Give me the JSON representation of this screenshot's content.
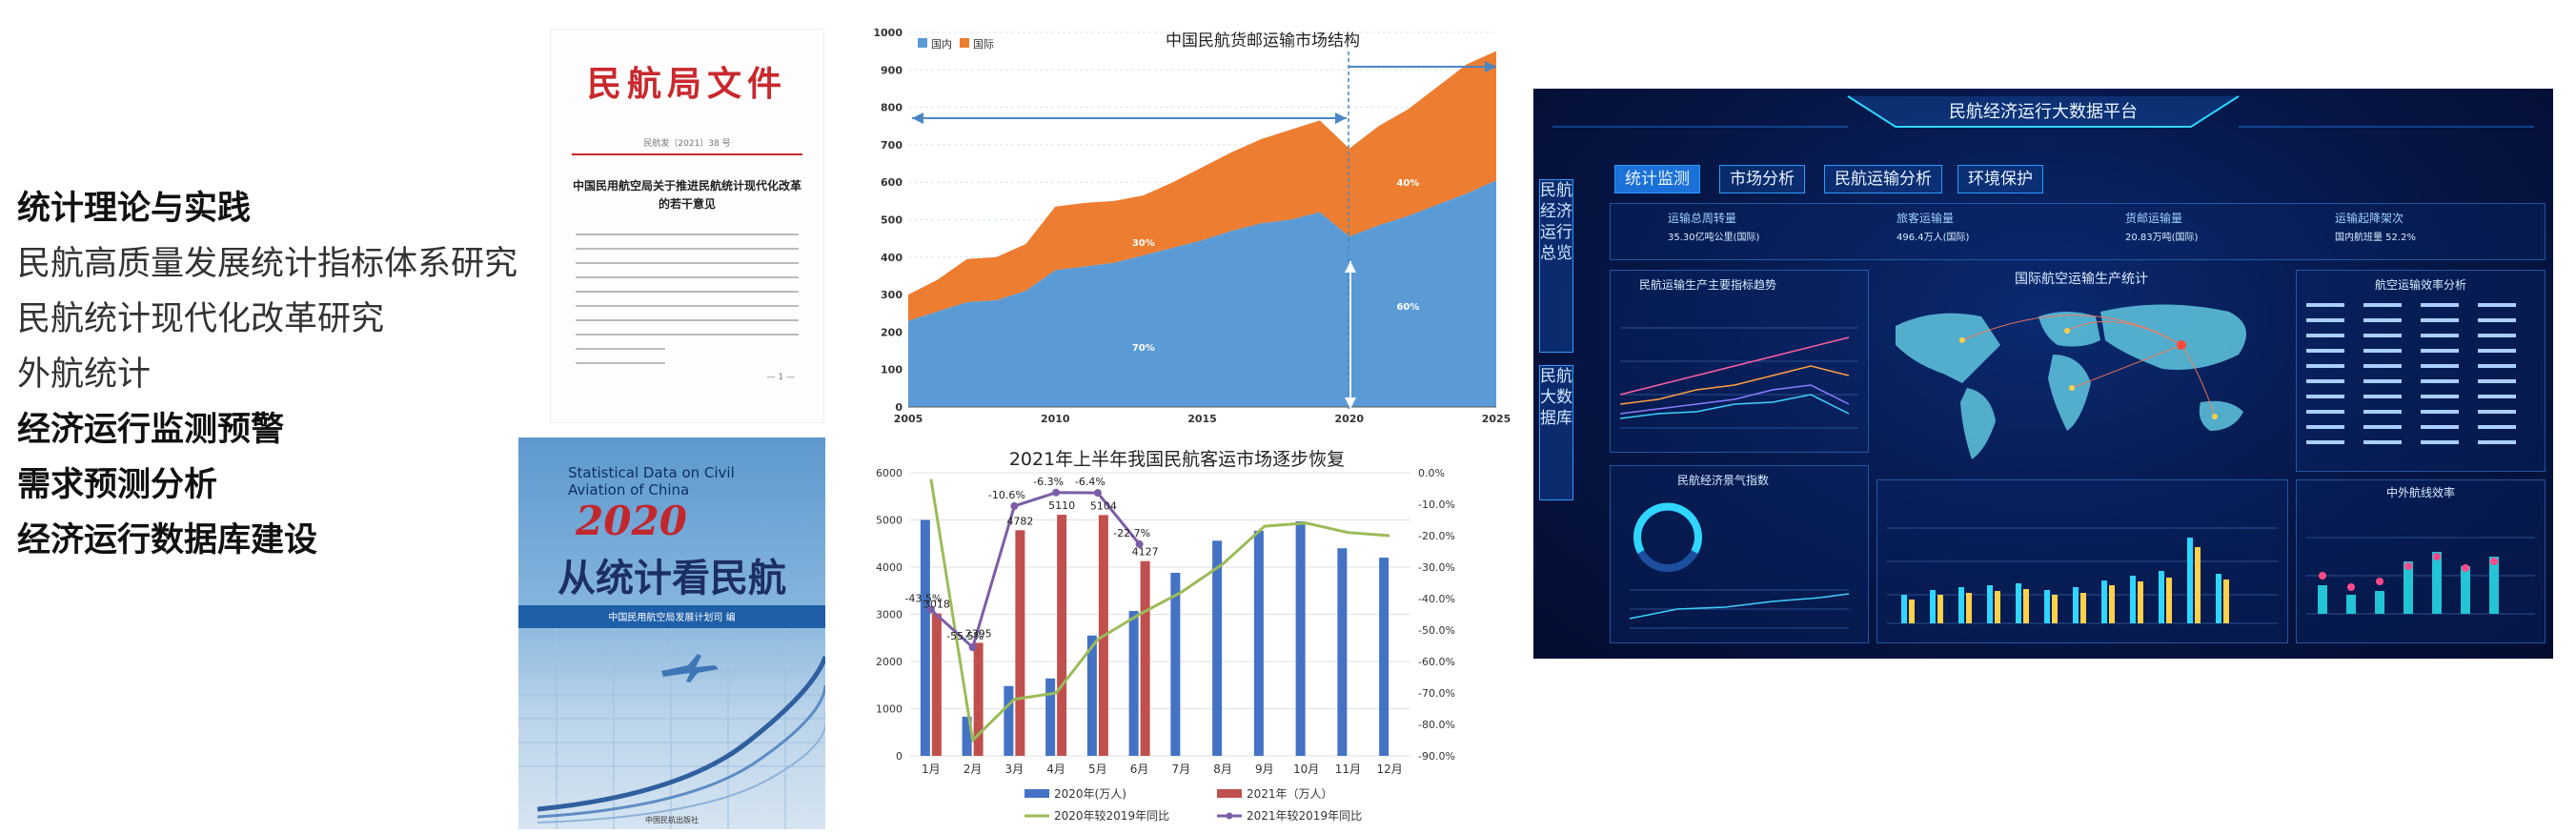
{
  "left_list": [
    {
      "text": "统计理论与实践",
      "bold": true
    },
    {
      "text": "民航高质量发展统计指标体系研究",
      "bold": false
    },
    {
      "text": "民航统计现代化改革研究",
      "bold": false
    },
    {
      "text": "外航统计",
      "bold": false
    },
    {
      "text": "经济运行监测预警",
      "bold": true
    },
    {
      "text": "需求预测分析",
      "bold": true
    },
    {
      "text": "经济运行数据库建设",
      "bold": true
    }
  ],
  "document": {
    "title": "民航局文件",
    "number": "民航发〔2021〕38 号",
    "heading": "中国民用航空局关于推进民航统计现代化改革的若干意见",
    "page": "— 1 —"
  },
  "book": {
    "english_title": "Statistical Data on Civil Aviation of China",
    "year": "2020",
    "chinese_title": "从统计看民航",
    "publisher_band": "中国民用航空局发展计划司 编",
    "press": "中国民航出版社"
  },
  "cargo_chart": {
    "type": "area",
    "title": "中国民航货邮运输市场结构",
    "legend": [
      "国内",
      "国际"
    ],
    "x": [
      2005,
      2006,
      2007,
      2008,
      2009,
      2010,
      2011,
      2012,
      2013,
      2014,
      2015,
      2016,
      2017,
      2018,
      2019,
      2020,
      2021,
      2022,
      2023,
      2024,
      2025
    ],
    "series": [
      {
        "name": "国内",
        "color": "#5b9bd5",
        "values": [
          230,
          255,
          280,
          285,
          310,
          365,
          375,
          385,
          405,
          425,
          445,
          470,
          490,
          500,
          520,
          455,
          485,
          510,
          540,
          570,
          605
        ]
      },
      {
        "name": "国际",
        "color": "#ed7d31",
        "values": [
          70,
          85,
          115,
          115,
          125,
          170,
          170,
          165,
          160,
          175,
          195,
          210,
          225,
          240,
          245,
          235,
          265,
          285,
          315,
          345,
          345
        ]
      }
    ],
    "annotations": [
      "70%",
      "30%",
      "60%",
      "40%"
    ],
    "xticks": [
      2005,
      2010,
      2015,
      2020,
      2025
    ],
    "ylim": [
      0,
      1000
    ],
    "ytick_step": 100
  },
  "passenger_chart": {
    "type": "bar",
    "title": "2021年上半年我国民航客运市场逐步恢复",
    "categories": [
      "1月",
      "2月",
      "3月",
      "4月",
      "5月",
      "6月",
      "7月",
      "8月",
      "9月",
      "10月",
      "11月",
      "12月"
    ],
    "bars_2020": [
      5000,
      830,
      1480,
      1640,
      2550,
      3070,
      3880,
      4560,
      4770,
      4970,
      4400,
      4200
    ],
    "bars_2021": [
      3018,
      2395,
      4782,
      5110,
      5104,
      4127
    ],
    "labels_2021": [
      "3018",
      "2395",
      "4782",
      "5110",
      "5104",
      "4127"
    ],
    "line_2020": [
      -2,
      -85,
      -72,
      -70,
      -53,
      -45,
      -38,
      -29,
      -17,
      -16,
      -19,
      -20
    ],
    "line_2021": [
      -43.5,
      -55.5,
      -10.6,
      -6.3,
      -6.4,
      -22.7
    ],
    "labels_line_2021": [
      "-43.5%",
      "-55.5%",
      "-10.6%",
      "-6.3%",
      "-6.4%",
      "-22.7%"
    ],
    "ylim_left": [
      0,
      6000
    ],
    "ylim_right": [
      -90,
      0
    ],
    "legend": [
      "2020年(万人)",
      "2021年（万人）",
      "2020年较2019年同比",
      "2021年较2019年同比"
    ],
    "colors": {
      "bar_2020": "#4472c4",
      "bar_2021": "#c0504d",
      "line_2020": "#9bbb59",
      "line_2021": "#7b5ea7"
    }
  },
  "dashboard": {
    "title": "民航经济运行大数据平台",
    "tabs": [
      "统计监测",
      "市场分析",
      "民航运输分析",
      "环境保护"
    ],
    "side_labels": [
      "民航经济运行总览",
      "民航大数据库"
    ],
    "kpis": [
      {
        "label": "运输总周转量",
        "value": "35.30亿吨公里(国际)"
      },
      {
        "label": "旅客运输量",
        "value": "496.4万人(国际)"
      },
      {
        "label": "货邮运输量",
        "value": "20.83万吨(国际)"
      },
      {
        "label": "运输起降架次",
        "value": "国内航班量 52.2%"
      }
    ],
    "panel_titles": [
      "民航运输生产主要指标趋势",
      "国际航空运输生产统计",
      "航空运输效率分析",
      "民航经济景气指数",
      "中外航线效率"
    ],
    "map_title": "国际航空运输生产统计",
    "colors": {
      "accent": "#1b71d8",
      "glow": "#2fd6ff"
    }
  }
}
